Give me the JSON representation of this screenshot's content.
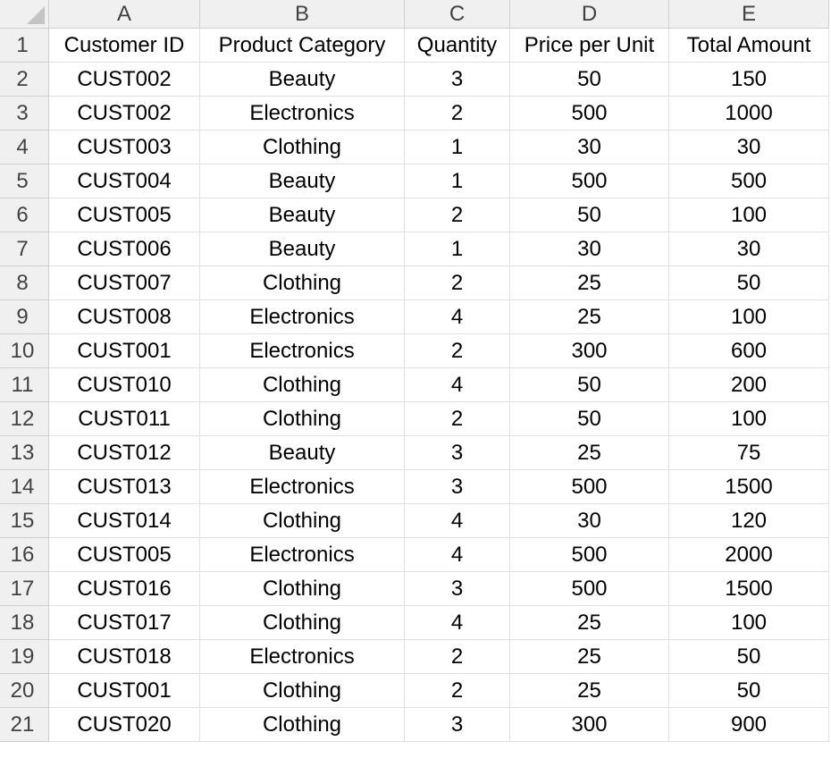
{
  "columns": [
    "A",
    "B",
    "C",
    "D",
    "E"
  ],
  "rows": [
    [
      "Customer ID",
      "Product Category",
      "Quantity",
      "Price per Unit",
      "Total Amount"
    ],
    [
      "CUST002",
      "Beauty",
      "3",
      "50",
      "150"
    ],
    [
      "CUST002",
      "Electronics",
      "2",
      "500",
      "1000"
    ],
    [
      "CUST003",
      "Clothing",
      "1",
      "30",
      "30"
    ],
    [
      "CUST004",
      "Beauty",
      "1",
      "500",
      "500"
    ],
    [
      "CUST005",
      "Beauty",
      "2",
      "50",
      "100"
    ],
    [
      "CUST006",
      "Beauty",
      "1",
      "30",
      "30"
    ],
    [
      "CUST007",
      "Clothing",
      "2",
      "25",
      "50"
    ],
    [
      "CUST008",
      "Electronics",
      "4",
      "25",
      "100"
    ],
    [
      "CUST001",
      "Electronics",
      "2",
      "300",
      "600"
    ],
    [
      "CUST010",
      "Clothing",
      "4",
      "50",
      "200"
    ],
    [
      "CUST011",
      "Clothing",
      "2",
      "50",
      "100"
    ],
    [
      "CUST012",
      "Beauty",
      "3",
      "25",
      "75"
    ],
    [
      "CUST013",
      "Electronics",
      "3",
      "500",
      "1500"
    ],
    [
      "CUST014",
      "Clothing",
      "4",
      "30",
      "120"
    ],
    [
      "CUST005",
      "Electronics",
      "4",
      "500",
      "2000"
    ],
    [
      "CUST016",
      "Clothing",
      "3",
      "500",
      "1500"
    ],
    [
      "CUST017",
      "Clothing",
      "4",
      "25",
      "100"
    ],
    [
      "CUST018",
      "Electronics",
      "2",
      "25",
      "50"
    ],
    [
      "CUST001",
      "Clothing",
      "2",
      "25",
      "50"
    ],
    [
      "CUST020",
      "Clothing",
      "3",
      "300",
      "900"
    ]
  ],
  "row_numbers": [
    "1",
    "2",
    "3",
    "4",
    "5",
    "6",
    "7",
    "8",
    "9",
    "10",
    "11",
    "12",
    "13",
    "14",
    "15",
    "16",
    "17",
    "18",
    "19",
    "20",
    "21"
  ]
}
